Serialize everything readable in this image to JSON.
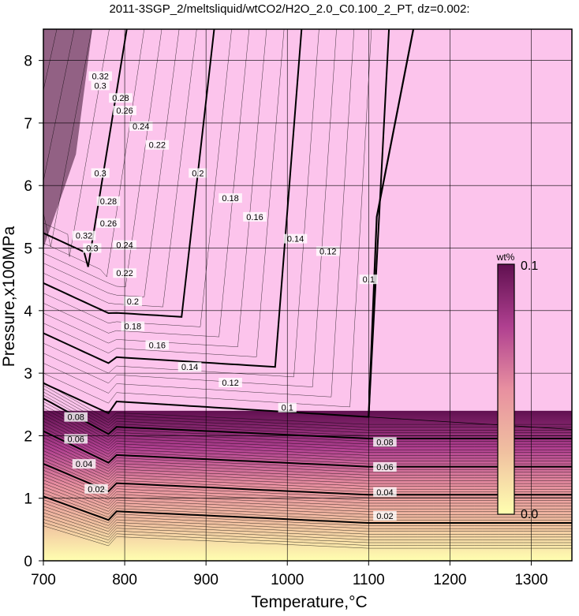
{
  "chart_data": {
    "type": "heatmap",
    "title": "2011-3SGP_2/meltsliquid/wtCO2/H2O_2.0_C0.100_2_PT, dz=0.002:",
    "xlabel": "Temperature,°C",
    "ylabel": "Pressure,x100MPa",
    "xlim": [
      700,
      1350
    ],
    "ylim": [
      0,
      8.5
    ],
    "x_ticks": [
      "700",
      "800",
      "900",
      "1000",
      "1100",
      "1200",
      "1300"
    ],
    "y_ticks": [
      "0",
      "1",
      "2",
      "3",
      "4",
      "5",
      "6",
      "7",
      "8"
    ],
    "grid": true,
    "colorbar": {
      "label": "wt%",
      "min_label": "0.0",
      "max_label": "0.1",
      "range": [
        0.0,
        0.1
      ],
      "colors": [
        "#ffffb0",
        "#f0c0a0",
        "#e890a0",
        "#b04090",
        "#601050"
      ]
    },
    "plateau_color": "#fcc4ec",
    "contour_levels": [
      0.02,
      0.04,
      0.06,
      0.08,
      0.1,
      0.12,
      0.14,
      0.16,
      0.18,
      0.2,
      0.22,
      0.24,
      0.26,
      0.28,
      0.3,
      0.32
    ],
    "contour_labels": [
      {
        "text": "0.02",
        "T": 765,
        "P": 1.15
      },
      {
        "text": "0.04",
        "T": 750,
        "P": 1.55
      },
      {
        "text": "0.06",
        "T": 740,
        "P": 1.95
      },
      {
        "text": "0.08",
        "T": 740,
        "P": 2.3
      },
      {
        "text": "0.1",
        "T": 1000,
        "P": 2.45
      },
      {
        "text": "0.12",
        "T": 930,
        "P": 2.85
      },
      {
        "text": "0.14",
        "T": 880,
        "P": 3.1
      },
      {
        "text": "0.16",
        "T": 840,
        "P": 3.45
      },
      {
        "text": "0.18",
        "T": 810,
        "P": 3.75
      },
      {
        "text": "0.2",
        "T": 810,
        "P": 4.15
      },
      {
        "text": "0.22",
        "T": 800,
        "P": 4.6
      },
      {
        "text": "0.24",
        "T": 800,
        "P": 5.05
      },
      {
        "text": "0.26",
        "T": 780,
        "P": 5.4
      },
      {
        "text": "0.28",
        "T": 780,
        "P": 5.75
      },
      {
        "text": "0.3",
        "T": 770,
        "P": 6.2
      },
      {
        "text": "0.02",
        "T": 1120,
        "P": 0.72
      },
      {
        "text": "0.04",
        "T": 1120,
        "P": 1.1
      },
      {
        "text": "0.06",
        "T": 1120,
        "P": 1.5
      },
      {
        "text": "0.08",
        "T": 1120,
        "P": 1.9
      },
      {
        "text": "0.1",
        "T": 1100,
        "P": 4.5
      },
      {
        "text": "0.12",
        "T": 1050,
        "P": 4.95
      },
      {
        "text": "0.14",
        "T": 1010,
        "P": 5.15
      },
      {
        "text": "0.16",
        "T": 960,
        "P": 5.5
      },
      {
        "text": "0.18",
        "T": 930,
        "P": 5.8
      },
      {
        "text": "0.2",
        "T": 890,
        "P": 6.2
      },
      {
        "text": "0.22",
        "T": 840,
        "P": 6.65
      },
      {
        "text": "0.24",
        "T": 820,
        "P": 6.95
      },
      {
        "text": "0.26",
        "T": 800,
        "P": 7.2
      },
      {
        "text": "0.28",
        "T": 795,
        "P": 7.4
      },
      {
        "text": "0.3",
        "T": 770,
        "P": 7.6
      },
      {
        "text": "0.32",
        "T": 770,
        "P": 7.75
      },
      {
        "text": "0.32",
        "T": 750,
        "P": 5.2
      },
      {
        "text": "0.3",
        "T": 760,
        "P": 5.0
      }
    ]
  }
}
